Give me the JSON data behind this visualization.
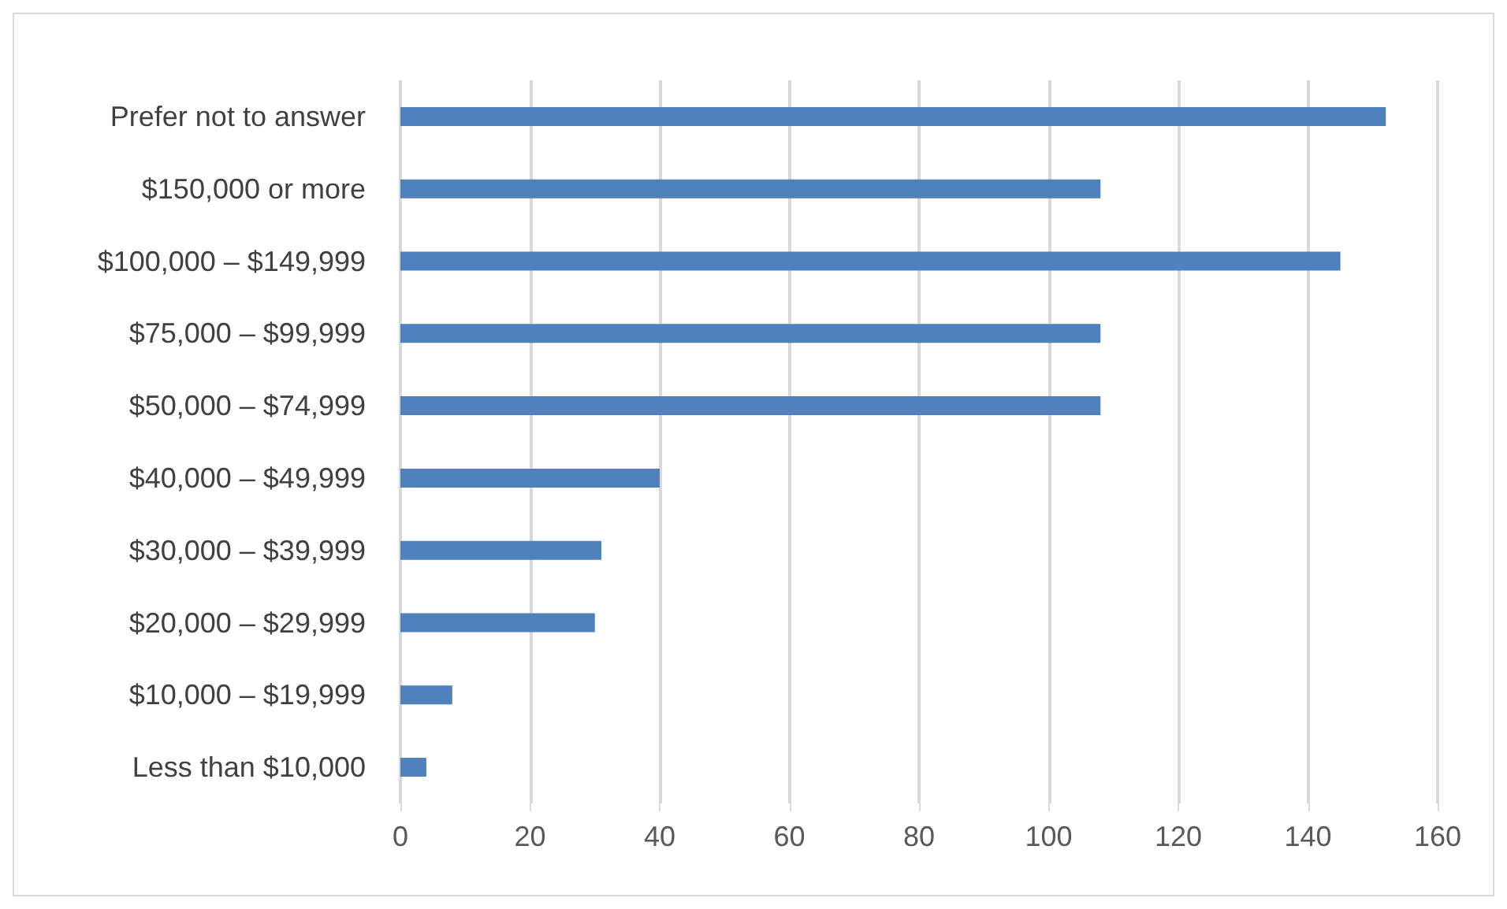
{
  "chart_data": {
    "type": "bar",
    "orientation": "horizontal",
    "categories": [
      "Prefer not to answer",
      "$150,000 or more",
      "$100,000 – $149,999",
      "$75,000 – $99,999",
      "$50,000 – $74,999",
      "$40,000 – $49,999",
      "$30,000 – $39,999",
      "$20,000 – $29,999",
      "$10,000 – $19,999",
      "Less than $10,000"
    ],
    "values": [
      152,
      108,
      145,
      108,
      108,
      40,
      31,
      30,
      8,
      4
    ],
    "color": "#4f81bd",
    "xlim": [
      0,
      160
    ],
    "xticks": [
      0,
      20,
      40,
      60,
      80,
      100,
      120,
      140,
      160
    ],
    "grid": "x"
  }
}
